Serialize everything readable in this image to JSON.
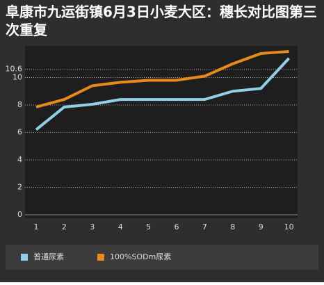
{
  "chart_data": {
    "type": "line",
    "title": "阜康市九运街镇6月3日小麦大区：穗长对比图第三次重复",
    "categories": [
      "1",
      "2",
      "3",
      "4",
      "5",
      "6",
      "7",
      "8",
      "9",
      "10"
    ],
    "series": [
      {
        "name": "普通尿素",
        "color": "#8fd0e6",
        "values": [
          6.2,
          7.85,
          8.05,
          8.4,
          8.4,
          8.4,
          8.4,
          9.0,
          9.2,
          11.4
        ]
      },
      {
        "name": "100%SODm尿素",
        "color": "#e8891c",
        "values": [
          7.85,
          8.4,
          9.4,
          9.65,
          9.8,
          9.8,
          10.1,
          11.0,
          11.75,
          11.9
        ]
      }
    ],
    "ylim": [
      0,
      12
    ],
    "yticks": [
      0,
      2,
      4,
      6,
      8,
      10,
      10.6
    ],
    "grid": true,
    "legend": "bottom"
  }
}
